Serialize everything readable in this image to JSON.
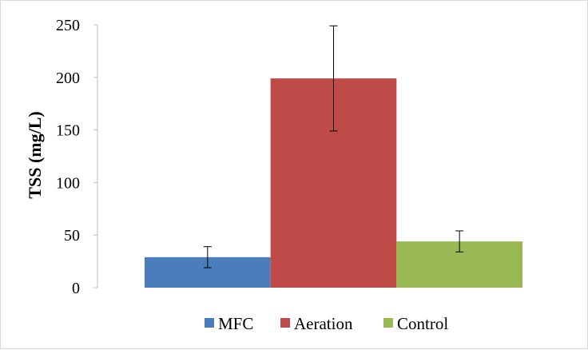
{
  "chart_data": {
    "type": "bar",
    "ylabel": "TSS (mg/L)",
    "ylim": [
      0,
      250
    ],
    "yticks": [
      "0",
      "50",
      "100",
      "150",
      "200",
      "250"
    ],
    "grid": false,
    "legend_position": "bottom",
    "series": [
      {
        "name": "MFC",
        "value": 29,
        "error": 10,
        "color": "#4a7ebb"
      },
      {
        "name": "Aeration",
        "value": 199,
        "error": 50,
        "color": "#be4b48"
      },
      {
        "name": "Control",
        "value": 44,
        "error": 10,
        "color": "#98b954"
      }
    ]
  }
}
